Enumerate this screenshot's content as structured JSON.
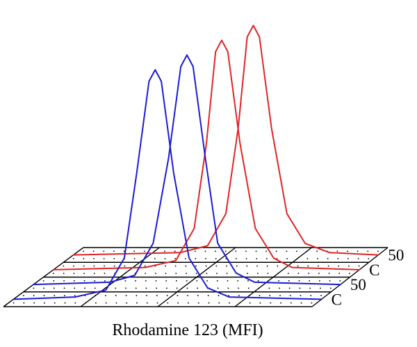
{
  "chart_data": {
    "type": "line",
    "subtype": "3d-stacked-histogram",
    "title": "",
    "xlabel": "Rhodamine 123 (MFI)",
    "ylabel": "",
    "grid": true,
    "legend": "none",
    "z_labels": [
      "C",
      "50",
      "C",
      "50"
    ],
    "series": [
      {
        "name": "",
        "color": "#1a1ad6",
        "points": [
          [
            0,
            0
          ],
          [
            0.2,
            0.01
          ],
          [
            0.3,
            0.04
          ],
          [
            0.36,
            0.18
          ],
          [
            0.4,
            0.55
          ],
          [
            0.44,
            0.95
          ],
          [
            0.46,
            1.0
          ],
          [
            0.48,
            0.95
          ],
          [
            0.52,
            0.55
          ],
          [
            0.57,
            0.18
          ],
          [
            0.63,
            0.05
          ],
          [
            0.7,
            0.01
          ],
          [
            1.0,
            0
          ]
        ]
      },
      {
        "name": "",
        "color": "#1a1ad6",
        "points": [
          [
            0,
            0
          ],
          [
            0.25,
            0.01
          ],
          [
            0.33,
            0.04
          ],
          [
            0.39,
            0.18
          ],
          [
            0.44,
            0.55
          ],
          [
            0.48,
            0.95
          ],
          [
            0.5,
            1.0
          ],
          [
            0.52,
            0.95
          ],
          [
            0.56,
            0.55
          ],
          [
            0.6,
            0.18
          ],
          [
            0.66,
            0.05
          ],
          [
            0.72,
            0.01
          ],
          [
            1.0,
            0
          ]
        ]
      },
      {
        "name": "",
        "color": "#e02424",
        "points": [
          [
            0,
            0
          ],
          [
            0.3,
            0.01
          ],
          [
            0.4,
            0.04
          ],
          [
            0.46,
            0.18
          ],
          [
            0.5,
            0.55
          ],
          [
            0.53,
            0.95
          ],
          [
            0.55,
            1.0
          ],
          [
            0.57,
            0.95
          ],
          [
            0.61,
            0.55
          ],
          [
            0.66,
            0.18
          ],
          [
            0.72,
            0.05
          ],
          [
            0.78,
            0.01
          ],
          [
            1.0,
            0
          ]
        ]
      },
      {
        "name": "",
        "color": "#e02424",
        "points": [
          [
            0,
            0
          ],
          [
            0.35,
            0.01
          ],
          [
            0.44,
            0.04
          ],
          [
            0.5,
            0.18
          ],
          [
            0.54,
            0.55
          ],
          [
            0.57,
            0.95
          ],
          [
            0.59,
            1.0
          ],
          [
            0.61,
            0.95
          ],
          [
            0.65,
            0.55
          ],
          [
            0.7,
            0.18
          ],
          [
            0.76,
            0.05
          ],
          [
            0.84,
            0.01
          ],
          [
            1.0,
            0
          ]
        ]
      }
    ]
  }
}
